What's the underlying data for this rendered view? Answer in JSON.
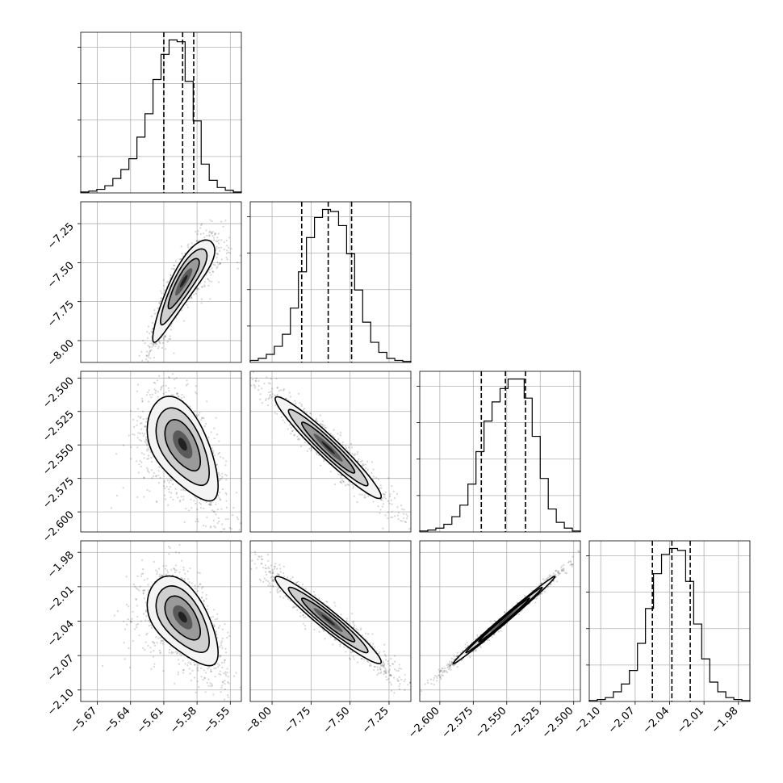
{
  "chart_data": {
    "type": "corner",
    "grid": true,
    "parameters": [
      {
        "index": 0,
        "range": [
          -5.685,
          -5.54
        ],
        "ticks": [
          "-5.67",
          "-5.64",
          "-5.61",
          "-5.58",
          "-5.55"
        ],
        "tick_values": [
          -5.67,
          -5.64,
          -5.61,
          -5.58,
          -5.55
        ],
        "quantiles": [
          -5.61,
          -5.593,
          -5.583
        ],
        "histogram": [
          0.5,
          1,
          2,
          4,
          8,
          13,
          19,
          31,
          44,
          63,
          77,
          85,
          84,
          62,
          40,
          16,
          7,
          3,
          1.5,
          0.5
        ]
      },
      {
        "index": 1,
        "range": [
          -8.14,
          -7.11
        ],
        "ticks": [
          "-8.00",
          "-7.75",
          "-7.50",
          "-7.25"
        ],
        "tick_values": [
          -8.0,
          -7.75,
          -7.5,
          -7.25
        ],
        "quantiles": [
          -7.81,
          -7.64,
          -7.49
        ],
        "histogram": [
          1,
          2,
          4,
          8,
          14,
          27,
          45,
          62,
          72,
          76,
          75,
          68,
          54,
          36,
          20,
          10,
          5,
          2,
          1,
          0.5
        ]
      },
      {
        "index": 2,
        "range": [
          -2.615,
          -2.495
        ],
        "ticks": [
          "-2.600",
          "-2.575",
          "-2.550",
          "-2.525",
          "-2.500"
        ],
        "tick_values": [
          -2.6,
          -2.575,
          -2.55,
          -2.525,
          -2.5
        ],
        "quantiles": [
          -2.569,
          -2.551,
          -2.536
        ],
        "histogram": [
          0.5,
          1,
          2,
          4,
          8,
          14,
          25,
          42,
          58,
          68,
          75,
          80,
          80,
          70,
          50,
          28,
          12,
          5,
          2,
          0.5
        ]
      },
      {
        "index": 3,
        "range": [
          -2.11,
          -1.97
        ],
        "ticks": [
          "-2.10",
          "-2.07",
          "-2.04",
          "-2.01",
          "-1.98"
        ],
        "tick_values": [
          -2.1,
          -2.07,
          -2.04,
          -2.01,
          -1.98
        ],
        "quantiles": [
          -2.055,
          -2.038,
          -2.022
        ],
        "histogram": [
          0.5,
          1,
          2,
          5,
          9,
          16,
          30,
          48,
          66,
          76,
          79,
          78,
          62,
          40,
          22,
          10,
          5,
          2,
          1,
          0.5
        ]
      }
    ],
    "pairs": [
      {
        "x": 0,
        "y": 1,
        "mean": [
          -5.592,
          -7.64
        ],
        "sd": [
          0.014,
          0.16
        ],
        "rho": 0.88,
        "skew": 0.45
      },
      {
        "x": 0,
        "y": 2,
        "mean": [
          -5.593,
          -2.552
        ],
        "sd": [
          0.016,
          0.019
        ],
        "rho": -0.55,
        "skew": 0.45
      },
      {
        "x": 1,
        "y": 2,
        "mean": [
          -7.64,
          -2.552
        ],
        "sd": [
          0.17,
          0.019
        ],
        "rho": -0.96,
        "skew": 0.0
      },
      {
        "x": 0,
        "y": 3,
        "mean": [
          -5.593,
          -2.039
        ],
        "sd": [
          0.016,
          0.019
        ],
        "rho": -0.55,
        "skew": 0.45
      },
      {
        "x": 1,
        "y": 3,
        "mean": [
          -7.64,
          -2.039
        ],
        "sd": [
          0.17,
          0.019
        ],
        "rho": -0.96,
        "skew": 0.0
      },
      {
        "x": 2,
        "y": 3,
        "mean": [
          -2.552,
          -2.039
        ],
        "sd": [
          0.019,
          0.019
        ],
        "rho": 0.995,
        "skew": 0.0
      }
    ]
  }
}
